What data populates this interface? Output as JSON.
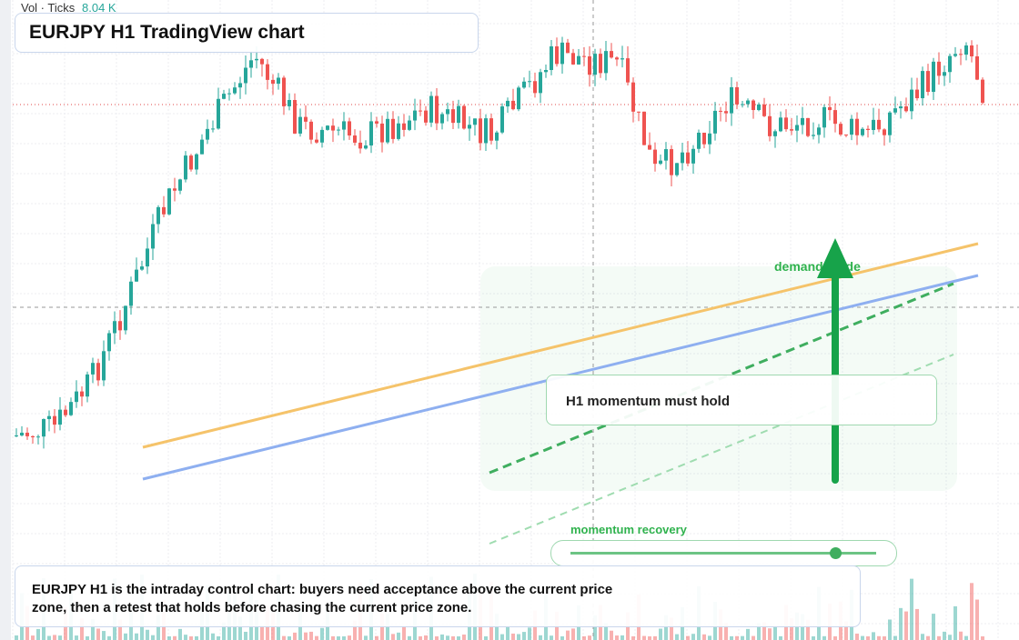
{
  "header": {
    "volume_label": "Vol · Ticks",
    "volume_value": "8.04 K",
    "title": "EURJPY H1 TradingView chart"
  },
  "annotations": {
    "guide_label": "demand guide",
    "momentum_box": "H1 momentum must hold",
    "slider_label": "momentum recovery"
  },
  "note": {
    "text": "EURJPY H1 is the intraday control chart: buyers need acceptance above the current price zone, then a retest that holds before chasing the current price zone."
  }
}
